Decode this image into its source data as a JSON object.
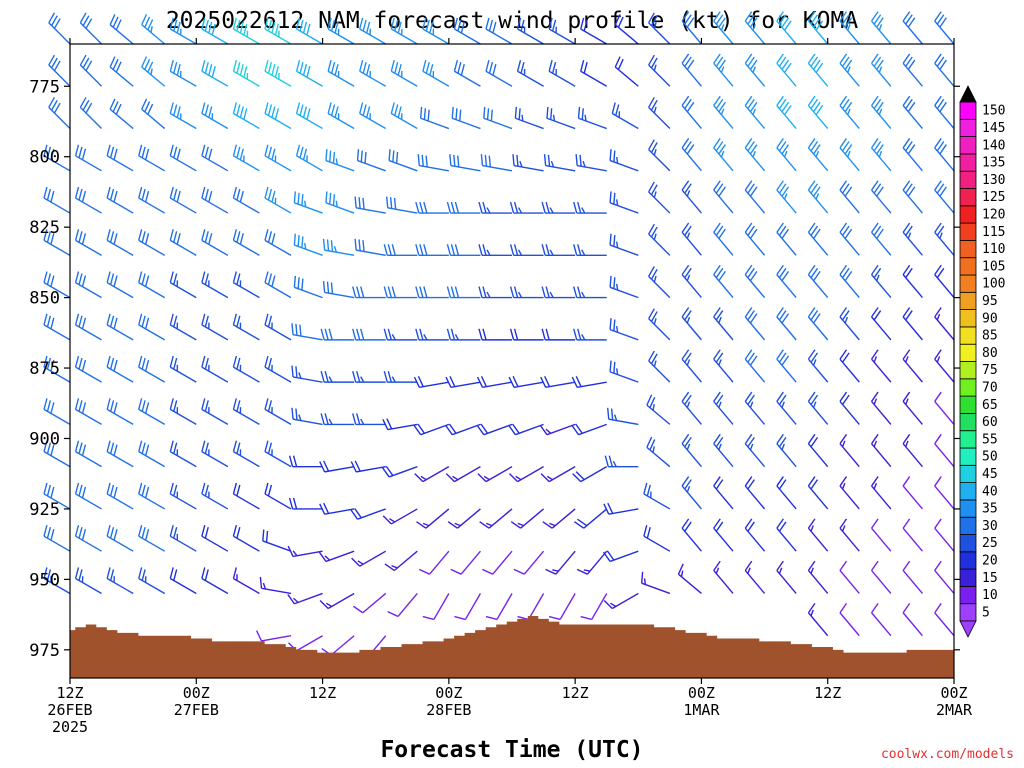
{
  "chart_data": {
    "type": "wind barb profile",
    "title": "2025022612 NAM forecast wind profile (kt) for KOMA",
    "xlabel": "Forecast Time (UTC)",
    "ylabel": "",
    "credit": "coolwx.com/models",
    "yticks": [
      775,
      800,
      825,
      850,
      875,
      900,
      925,
      950,
      975
    ],
    "ylim": [
      760,
      985
    ],
    "xticks": [
      {
        "line1": "12Z",
        "line2": "26FEB",
        "line3": "2025"
      },
      {
        "line1": "00Z",
        "line2": "27FEB",
        "line3": ""
      },
      {
        "line1": "12Z",
        "line2": "",
        "line3": ""
      },
      {
        "line1": "00Z",
        "line2": "28FEB",
        "line3": ""
      },
      {
        "line1": "12Z",
        "line2": "",
        "line3": ""
      },
      {
        "line1": "00Z",
        "line2": "1MAR",
        "line3": ""
      },
      {
        "line1": "12Z",
        "line2": "",
        "line3": ""
      },
      {
        "line1": "00Z",
        "line2": "2MAR",
        "line3": ""
      }
    ],
    "xlim_hours": [
      0,
      84
    ],
    "colorbar": {
      "levels": [
        5,
        10,
        15,
        20,
        25,
        30,
        35,
        40,
        45,
        50,
        55,
        60,
        65,
        70,
        75,
        80,
        85,
        90,
        95,
        100,
        105,
        110,
        115,
        120,
        125,
        130,
        135,
        140,
        145,
        150
      ],
      "colors": [
        "#a040ff",
        "#7a20ee",
        "#3a20d8",
        "#2030dd",
        "#1f50e0",
        "#2070e8",
        "#2090f0",
        "#20b0f0",
        "#20d0e0",
        "#20f0c0",
        "#20f090",
        "#20e060",
        "#30e030",
        "#70f020",
        "#b0f020",
        "#f0f020",
        "#f0e020",
        "#f0c020",
        "#f0a020",
        "#f08020",
        "#f07020",
        "#f06020",
        "#f04020",
        "#f02020",
        "#f02050",
        "#f02080",
        "#f020a0",
        "#f020c0",
        "#f020e0",
        "#ff00ff"
      ]
    },
    "surface_pressure": {
      "hours": [
        0,
        1,
        2,
        3,
        4,
        5,
        6,
        7,
        8,
        9,
        10,
        11,
        12,
        13,
        14,
        15,
        16,
        17,
        18,
        19,
        20,
        21,
        22,
        23,
        24,
        25,
        26,
        27,
        28,
        29,
        30,
        31,
        32,
        33,
        34,
        35,
        36,
        37,
        38,
        39,
        40,
        41,
        42,
        43,
        44,
        45,
        46,
        47,
        48,
        49,
        50,
        51,
        52,
        53,
        54,
        55,
        56,
        57,
        58,
        59,
        60,
        61,
        62,
        63,
        64,
        65,
        66,
        67,
        68,
        69,
        70,
        71,
        72,
        73,
        74,
        75,
        76,
        77,
        78,
        79,
        80,
        81,
        82,
        83,
        84
      ],
      "pressure_hpa": [
        968,
        967,
        966,
        967,
        968,
        969,
        969,
        970,
        970,
        970,
        970,
        970,
        971,
        971,
        972,
        972,
        972,
        972,
        972,
        973,
        973,
        974,
        975,
        975,
        976,
        976,
        976,
        976,
        975,
        975,
        974,
        974,
        973,
        973,
        972,
        972,
        971,
        970,
        969,
        968,
        967,
        966,
        965,
        964,
        963,
        964,
        965,
        966,
        966,
        966,
        966,
        966,
        966,
        966,
        966,
        966,
        967,
        967,
        968,
        969,
        969,
        970,
        971,
        971,
        971,
        971,
        972,
        972,
        972,
        973,
        973,
        974,
        974,
        975,
        976,
        976,
        976,
        976,
        976,
        976,
        975,
        975,
        975,
        975,
        975
      ]
    },
    "wind": {
      "hours": [
        0,
        3,
        6,
        9,
        12,
        15,
        18,
        21,
        24,
        27,
        30,
        33,
        36,
        39,
        42,
        45,
        48,
        51,
        54,
        57,
        60,
        63,
        66,
        69,
        72,
        75,
        78,
        81,
        84
      ],
      "levels_hpa": [
        760,
        775,
        790,
        805,
        820,
        835,
        850,
        865,
        880,
        895,
        910,
        925,
        940,
        955,
        970
      ],
      "speed_kt": [
        [
          32,
          32,
          32,
          30,
          30,
          30,
          30,
          30,
          30,
          30,
          30,
          30,
          30,
          25,
          20
        ],
        [
          32,
          32,
          32,
          30,
          30,
          30,
          30,
          30,
          30,
          30,
          30,
          30,
          30,
          25,
          20
        ],
        [
          32,
          32,
          32,
          30,
          30,
          30,
          30,
          30,
          30,
          30,
          30,
          30,
          30,
          25,
          15
        ],
        [
          35,
          35,
          32,
          30,
          30,
          30,
          30,
          30,
          30,
          30,
          30,
          30,
          30,
          25,
          15
        ],
        [
          35,
          35,
          35,
          30,
          30,
          30,
          25,
          25,
          25,
          25,
          25,
          25,
          25,
          20,
          15
        ],
        [
          40,
          40,
          35,
          30,
          30,
          30,
          25,
          25,
          25,
          25,
          25,
          25,
          20,
          20,
          15
        ],
        [
          45,
          45,
          40,
          35,
          30,
          30,
          25,
          25,
          25,
          25,
          25,
          20,
          20,
          15,
          10
        ],
        [
          45,
          45,
          40,
          35,
          35,
          30,
          30,
          25,
          25,
          25,
          25,
          20,
          20,
          15,
          10
        ],
        [
          40,
          40,
          40,
          35,
          35,
          35,
          30,
          30,
          25,
          25,
          20,
          20,
          15,
          15,
          10
        ],
        [
          35,
          35,
          35,
          35,
          35,
          35,
          30,
          30,
          25,
          25,
          20,
          20,
          15,
          15,
          10
        ],
        [
          35,
          35,
          35,
          30,
          30,
          30,
          30,
          30,
          25,
          25,
          20,
          20,
          15,
          10,
          10
        ],
        [
          35,
          35,
          35,
          30,
          30,
          30,
          30,
          25,
          25,
          20,
          20,
          15,
          15,
          10,
          10
        ],
        [
          35,
          35,
          30,
          30,
          30,
          30,
          30,
          25,
          20,
          20,
          15,
          15,
          10,
          10,
          10
        ],
        [
          30,
          30,
          30,
          30,
          30,
          30,
          30,
          25,
          20,
          20,
          15,
          15,
          10,
          10,
          10
        ],
        [
          30,
          30,
          30,
          30,
          25,
          25,
          25,
          20,
          20,
          20,
          15,
          15,
          10,
          10,
          10
        ],
        [
          25,
          25,
          25,
          25,
          25,
          25,
          25,
          20,
          20,
          20,
          15,
          15,
          10,
          10,
          10
        ],
        [
          25,
          25,
          25,
          25,
          25,
          25,
          25,
          20,
          20,
          15,
          15,
          15,
          15,
          10,
          10
        ],
        [
          20,
          20,
          25,
          25,
          25,
          25,
          25,
          25,
          20,
          20,
          20,
          20,
          15,
          10,
          10
        ],
        [
          20,
          20,
          25,
          25,
          25,
          25,
          25,
          25,
          25,
          25,
          25,
          20,
          20,
          15,
          10
        ],
        [
          25,
          25,
          25,
          25,
          25,
          25,
          25,
          25,
          25,
          25,
          25,
          25,
          20,
          15,
          10
        ],
        [
          30,
          30,
          30,
          30,
          25,
          25,
          25,
          25,
          25,
          25,
          25,
          25,
          20,
          15,
          10
        ],
        [
          35,
          35,
          35,
          35,
          30,
          30,
          30,
          25,
          25,
          25,
          25,
          20,
          20,
          15,
          15
        ],
        [
          35,
          35,
          35,
          35,
          30,
          30,
          30,
          30,
          30,
          25,
          25,
          20,
          20,
          15,
          15
        ],
        [
          40,
          40,
          40,
          35,
          35,
          30,
          30,
          30,
          30,
          25,
          25,
          20,
          20,
          15,
          15
        ],
        [
          40,
          40,
          40,
          35,
          35,
          30,
          30,
          30,
          25,
          25,
          20,
          20,
          15,
          15,
          15
        ],
        [
          35,
          35,
          35,
          35,
          30,
          30,
          30,
          25,
          20,
          20,
          15,
          15,
          15,
          10,
          10
        ],
        [
          35,
          35,
          35,
          35,
          30,
          30,
          25,
          20,
          15,
          15,
          15,
          15,
          10,
          10,
          10
        ],
        [
          30,
          30,
          30,
          30,
          30,
          25,
          20,
          20,
          15,
          15,
          15,
          10,
          10,
          10,
          10
        ],
        [
          30,
          30,
          30,
          30,
          30,
          25,
          20,
          15,
          15,
          10,
          10,
          10,
          10,
          10,
          10
        ]
      ],
      "direction_deg": [
        [
          315,
          315,
          315,
          300,
          300,
          300,
          300,
          300,
          300,
          300,
          300,
          300,
          300,
          300,
          300
        ],
        [
          315,
          315,
          315,
          300,
          300,
          300,
          300,
          300,
          300,
          300,
          300,
          300,
          300,
          300,
          300
        ],
        [
          310,
          310,
          310,
          300,
          300,
          300,
          300,
          300,
          300,
          300,
          300,
          300,
          300,
          300,
          300
        ],
        [
          310,
          310,
          310,
          300,
          300,
          300,
          300,
          300,
          300,
          300,
          300,
          300,
          300,
          300,
          300
        ],
        [
          300,
          300,
          300,
          300,
          300,
          300,
          300,
          300,
          300,
          300,
          300,
          300,
          300,
          300,
          300
        ],
        [
          300,
          300,
          300,
          300,
          300,
          300,
          300,
          300,
          300,
          300,
          300,
          300,
          300,
          300,
          300
        ],
        [
          300,
          300,
          300,
          300,
          300,
          300,
          300,
          300,
          300,
          300,
          300,
          300,
          300,
          300,
          280
        ],
        [
          300,
          300,
          300,
          300,
          300,
          300,
          300,
          300,
          300,
          300,
          300,
          300,
          290,
          280,
          260
        ],
        [
          300,
          300,
          300,
          300,
          290,
          290,
          290,
          280,
          280,
          280,
          270,
          270,
          260,
          250,
          240
        ],
        [
          300,
          300,
          300,
          290,
          290,
          280,
          280,
          270,
          270,
          270,
          260,
          260,
          250,
          240,
          230
        ],
        [
          300,
          300,
          300,
          290,
          280,
          280,
          270,
          270,
          270,
          270,
          260,
          250,
          240,
          230,
          220
        ],
        [
          300,
          300,
          300,
          290,
          280,
          270,
          270,
          270,
          270,
          260,
          250,
          240,
          230,
          220,
          210
        ],
        [
          300,
          300,
          290,
          280,
          270,
          270,
          270,
          270,
          260,
          250,
          240,
          230,
          220,
          210,
          200
        ],
        [
          300,
          300,
          290,
          280,
          270,
          270,
          270,
          270,
          260,
          250,
          240,
          230,
          220,
          210,
          200
        ],
        [
          300,
          300,
          290,
          280,
          270,
          270,
          270,
          270,
          260,
          250,
          240,
          230,
          220,
          210,
          200
        ],
        [
          300,
          300,
          290,
          280,
          270,
          270,
          270,
          270,
          260,
          250,
          240,
          230,
          220,
          210,
          200
        ],
        [
          300,
          300,
          290,
          280,
          270,
          270,
          270,
          270,
          260,
          250,
          240,
          230,
          220,
          210,
          200
        ],
        [
          300,
          300,
          290,
          280,
          270,
          270,
          270,
          270,
          260,
          250,
          240,
          230,
          220,
          210,
          200
        ],
        [
          310,
          310,
          300,
          290,
          290,
          290,
          290,
          290,
          290,
          280,
          270,
          260,
          250,
          240,
          230
        ],
        [
          315,
          315,
          315,
          315,
          315,
          315,
          315,
          315,
          315,
          310,
          310,
          300,
          300,
          290,
          280
        ],
        [
          320,
          320,
          320,
          320,
          320,
          320,
          320,
          320,
          320,
          320,
          320,
          320,
          320,
          310,
          310
        ],
        [
          320,
          320,
          320,
          320,
          320,
          320,
          320,
          320,
          320,
          320,
          320,
          320,
          320,
          320,
          320
        ],
        [
          320,
          320,
          320,
          320,
          320,
          320,
          320,
          320,
          320,
          320,
          320,
          320,
          320,
          320,
          320
        ],
        [
          320,
          320,
          320,
          320,
          320,
          320,
          320,
          320,
          320,
          320,
          320,
          320,
          320,
          320,
          320
        ],
        [
          320,
          320,
          320,
          320,
          320,
          320,
          320,
          320,
          320,
          320,
          320,
          320,
          320,
          320,
          320
        ],
        [
          320,
          320,
          320,
          320,
          320,
          320,
          320,
          320,
          320,
          320,
          320,
          320,
          320,
          320,
          320
        ],
        [
          320,
          320,
          320,
          320,
          320,
          320,
          320,
          320,
          320,
          320,
          320,
          320,
          320,
          320,
          320
        ],
        [
          320,
          320,
          320,
          320,
          320,
          320,
          320,
          320,
          320,
          320,
          320,
          320,
          320,
          320,
          320
        ],
        [
          320,
          320,
          320,
          320,
          320,
          320,
          320,
          320,
          320,
          320,
          320,
          320,
          320,
          320,
          320
        ]
      ]
    },
    "ground_color": "#a0522d"
  }
}
